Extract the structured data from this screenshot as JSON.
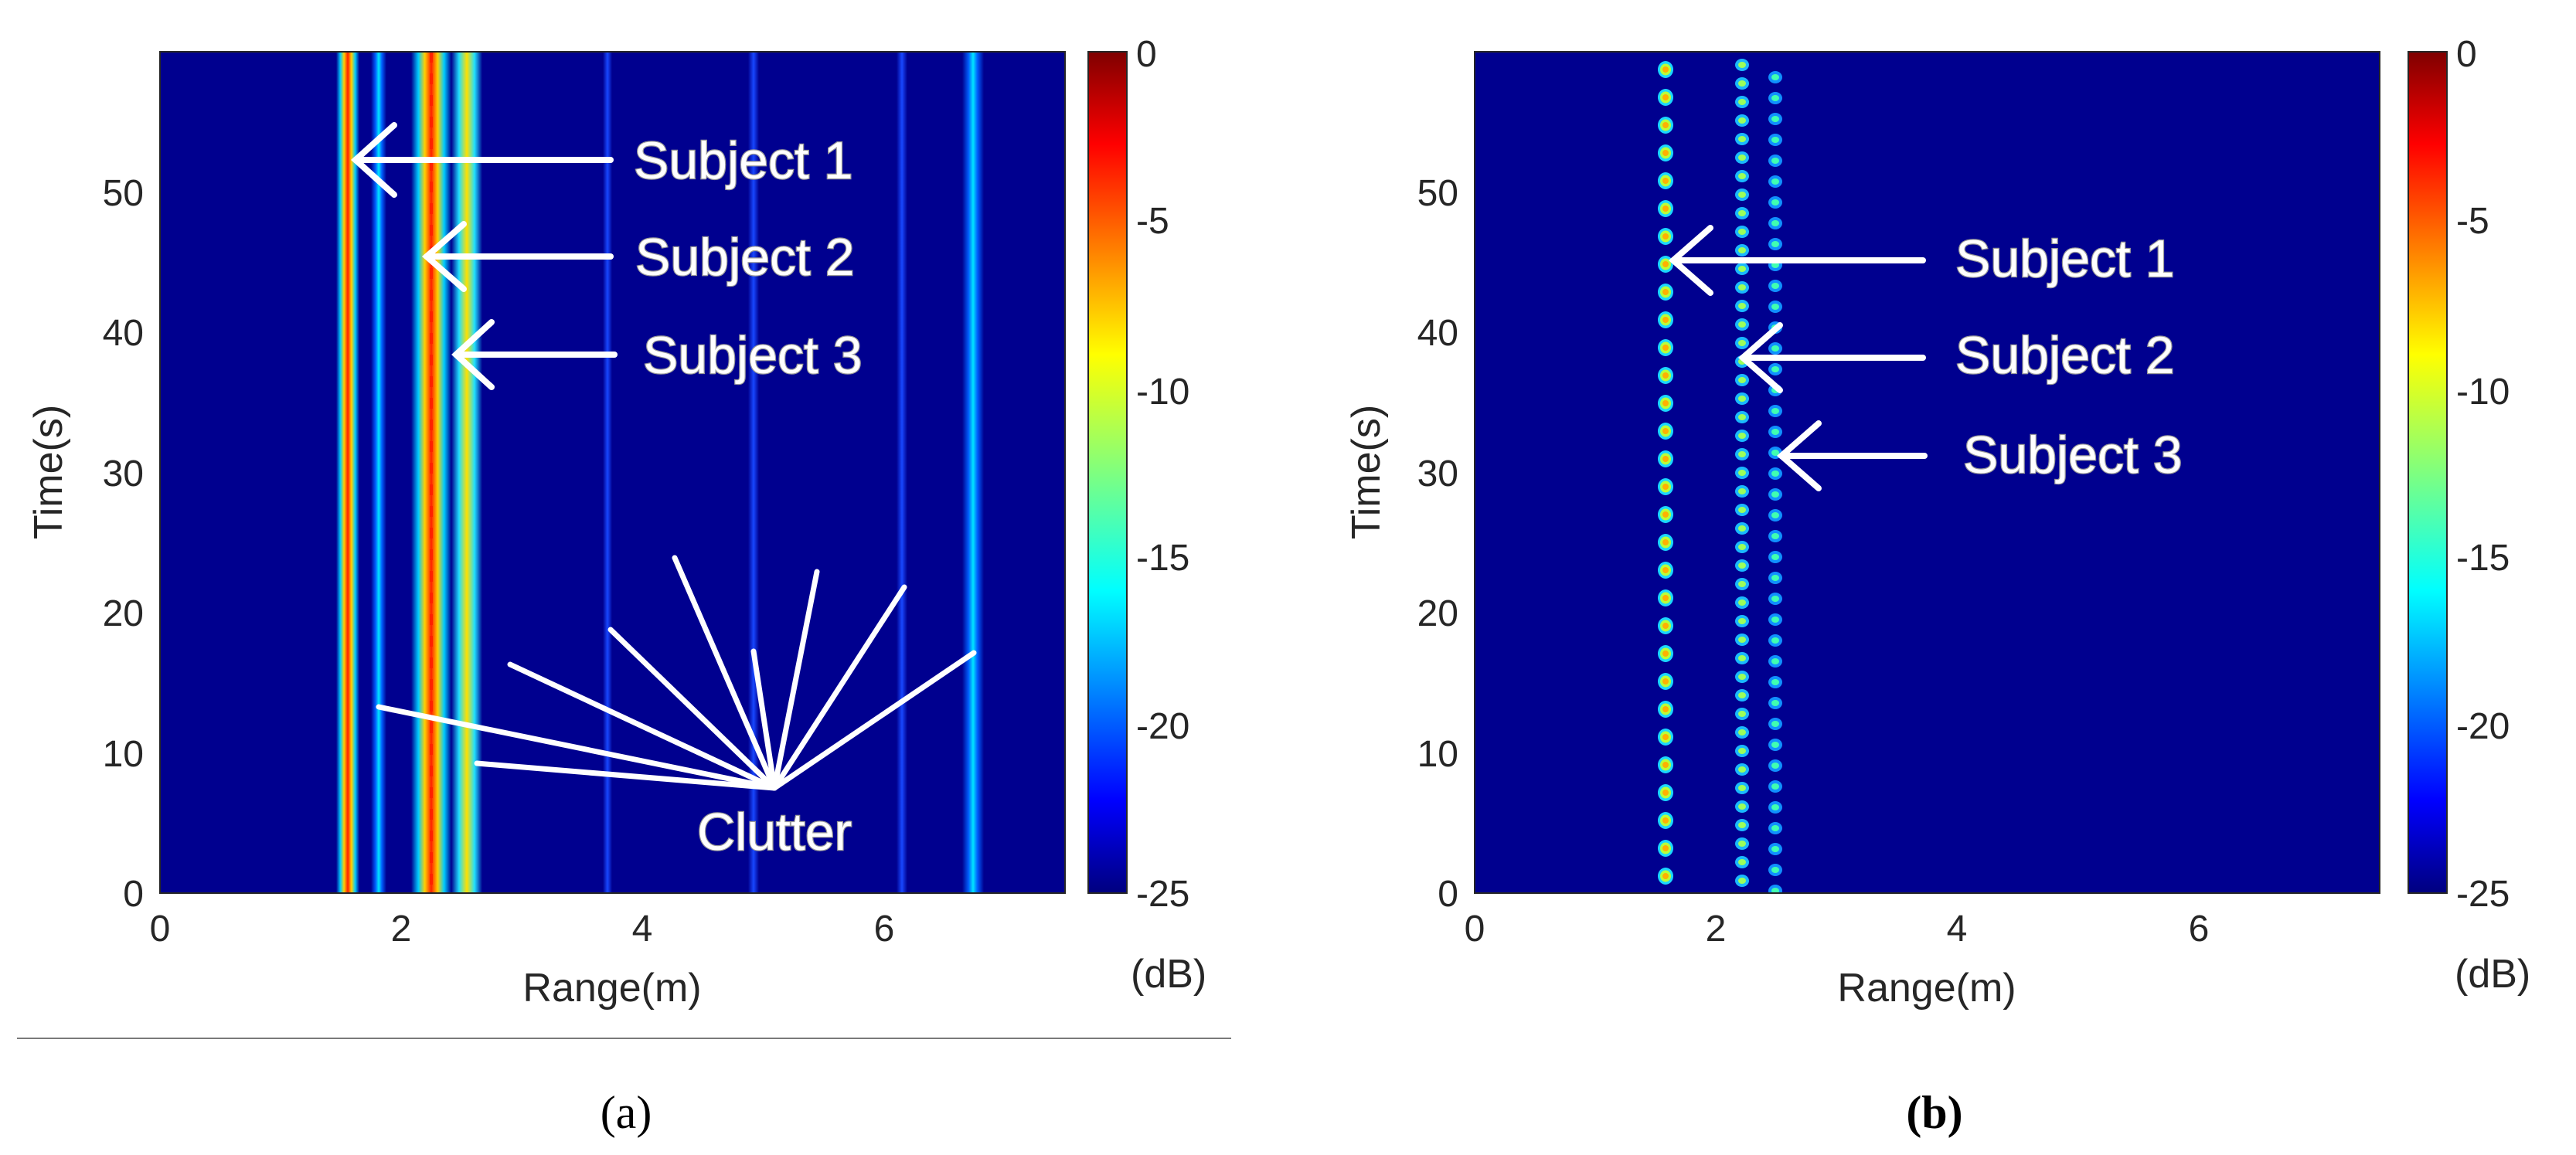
{
  "chart_data": [
    {
      "type": "heatmap",
      "panel_label": "a",
      "xlabel": "Range(m)",
      "ylabel": "Time(s)",
      "xlim": [
        0,
        7.5
      ],
      "ylim": [
        0,
        60
      ],
      "xticks": [
        0,
        2,
        4,
        6
      ],
      "yticks": [
        0,
        10,
        20,
        30,
        40,
        50
      ],
      "colorbar": {
        "label": "(dB)",
        "range": [
          -25,
          0
        ],
        "ticks": [
          0,
          -5,
          -10,
          -15,
          -20,
          -25
        ]
      },
      "bands": [
        {
          "name": "Subject 1",
          "range_m": 1.55,
          "peak_db": -2,
          "pattern": "solid"
        },
        {
          "name": "clutter",
          "range_m": 1.82,
          "peak_db": -15,
          "pattern": "solid"
        },
        {
          "name": "Subject 2",
          "range_m": 2.22,
          "peak_db": -3,
          "pattern": "solid"
        },
        {
          "name": "Subject 3",
          "range_m": 2.5,
          "peak_db": -3,
          "pattern": "solid"
        },
        {
          "name": "clutter",
          "range_m": 6.7,
          "peak_db": -16,
          "pattern": "solid"
        }
      ],
      "annotations": [
        {
          "text": "Subject 1",
          "target_range_m": 1.6,
          "target_time_s": 52
        },
        {
          "text": "Subject 2",
          "target_range_m": 2.2,
          "target_time_s": 45
        },
        {
          "text": "Subject 3",
          "target_range_m": 2.45,
          "target_time_s": 38
        },
        {
          "text": "Clutter",
          "points_to_range_m": [
            1.8,
            2.6,
            2.9,
            3.8,
            4.3,
            4.9,
            5.4,
            6.3,
            6.9
          ]
        }
      ]
    },
    {
      "type": "heatmap",
      "panel_label": "b",
      "xlabel": "Range(m)",
      "ylabel": "Time(s)",
      "xlim": [
        0,
        7.5
      ],
      "ylim": [
        0,
        60
      ],
      "xticks": [
        0,
        2,
        4,
        6
      ],
      "yticks": [
        0,
        10,
        20,
        30,
        40,
        50
      ],
      "colorbar": {
        "label": "(dB)",
        "range": [
          -25,
          0
        ],
        "ticks": [
          0,
          -5,
          -10,
          -15,
          -20,
          -25
        ]
      },
      "bands": [
        {
          "name": "Subject 1",
          "range_m": 1.55,
          "peak_db": -6,
          "pattern": "periodic"
        },
        {
          "name": "Subject 2",
          "range_m": 2.15,
          "peak_db": -12,
          "pattern": "periodic"
        },
        {
          "name": "Subject 3",
          "range_m": 2.45,
          "peak_db": -14,
          "pattern": "periodic"
        }
      ],
      "annotations": [
        {
          "text": "Subject 1",
          "target_range_m": 1.6,
          "target_time_s": 45
        },
        {
          "text": "Subject 2",
          "target_range_m": 2.2,
          "target_time_s": 38
        },
        {
          "text": "Subject 3",
          "target_range_m": 2.5,
          "target_time_s": 31
        }
      ]
    }
  ],
  "captions": {
    "a": "(a)",
    "b": "(b)"
  }
}
